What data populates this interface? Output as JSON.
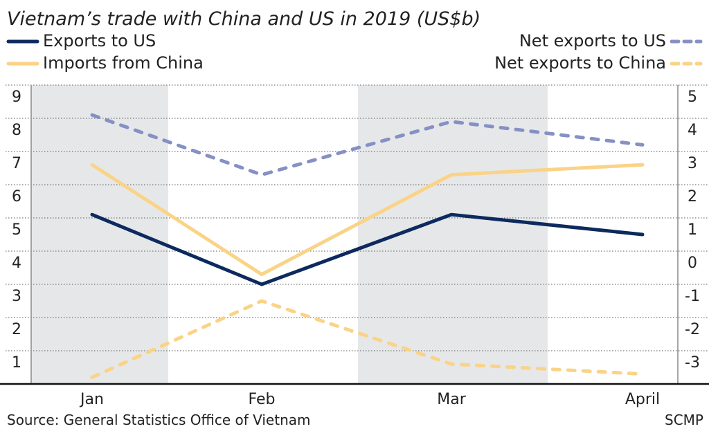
{
  "chart_data": {
    "type": "line",
    "title": "Vietnam’s trade with China and US in 2019 (US$b)",
    "categories": [
      "Jan",
      "Feb",
      "Mar",
      "April"
    ],
    "left_axis": {
      "range": [
        0,
        9
      ],
      "ticks": [
        "1",
        "2",
        "3",
        "4",
        "5",
        "6",
        "7",
        "8",
        "9"
      ]
    },
    "right_axis": {
      "range": [
        -4,
        5
      ],
      "ticks": [
        "-3",
        "-2",
        "-1",
        "0",
        "1",
        "2",
        "3",
        "4",
        "5"
      ]
    },
    "grid": "horizontal dotted",
    "shaded_months": [
      "Jan",
      "Mar"
    ],
    "series": [
      {
        "name": "Exports to US",
        "axis": "left",
        "style": "solid",
        "color": "#0d2a5e",
        "values": [
          5.1,
          3.0,
          5.1,
          4.5
        ]
      },
      {
        "name": "Imports from China",
        "axis": "left",
        "style": "solid",
        "color": "#fad386",
        "values": [
          6.6,
          3.3,
          6.3,
          6.6
        ]
      },
      {
        "name": "Net exports to US",
        "axis": "right",
        "style": "dashed",
        "color": "#8690c4",
        "values": [
          4.1,
          2.3,
          3.9,
          3.2
        ]
      },
      {
        "name": "Net exports to China",
        "axis": "right",
        "style": "dashed",
        "color": "#fad386",
        "values": [
          -3.8,
          -1.5,
          -3.4,
          -3.7
        ]
      }
    ],
    "legend": "top"
  },
  "source": "Source: General Statistics Office of Vietnam",
  "credit": "SCMP"
}
